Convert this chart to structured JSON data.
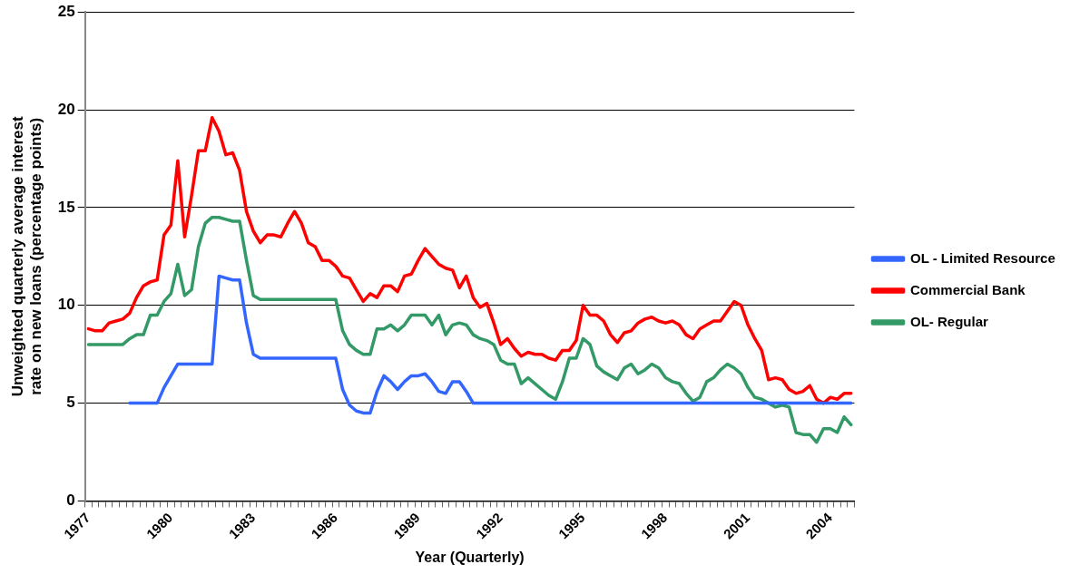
{
  "chart_data": {
    "type": "line",
    "xlabel": "Year (Quarterly)",
    "ylabel": "Unweighted quarterly average interest rate on new loans (percentage points)",
    "categories": [
      "1977",
      null,
      null,
      null,
      null,
      null,
      null,
      null,
      null,
      null,
      null,
      null,
      "1980",
      null,
      null,
      null,
      null,
      null,
      null,
      null,
      null,
      null,
      null,
      null,
      "1983",
      null,
      null,
      null,
      null,
      null,
      null,
      null,
      null,
      null,
      null,
      null,
      "1986",
      null,
      null,
      null,
      null,
      null,
      null,
      null,
      null,
      null,
      null,
      null,
      "1989",
      null,
      null,
      null,
      null,
      null,
      null,
      null,
      null,
      null,
      null,
      null,
      "1992",
      null,
      null,
      null,
      null,
      null,
      null,
      null,
      null,
      null,
      null,
      null,
      "1995",
      null,
      null,
      null,
      null,
      null,
      null,
      null,
      null,
      null,
      null,
      null,
      "1998",
      null,
      null,
      null,
      null,
      null,
      null,
      null,
      null,
      null,
      null,
      null,
      "2001",
      null,
      null,
      null,
      null,
      null,
      null,
      null,
      null,
      null,
      null,
      null,
      "2004",
      null,
      null,
      null
    ],
    "series": [
      {
        "name": "OL - Limited Resource",
        "color": "#3366ff",
        "values": [
          null,
          null,
          null,
          null,
          null,
          null,
          5.0,
          5.0,
          5.0,
          5.0,
          5.0,
          5.8,
          6.4,
          7.0,
          7.0,
          7.0,
          7.0,
          7.0,
          7.0,
          11.5,
          11.4,
          11.3,
          11.3,
          9.1,
          7.5,
          7.3,
          7.3,
          7.3,
          7.3,
          7.3,
          7.3,
          7.3,
          7.3,
          7.3,
          7.3,
          7.3,
          7.3,
          5.7,
          4.9,
          4.6,
          4.5,
          4.5,
          5.6,
          6.4,
          6.1,
          5.7,
          6.1,
          6.4,
          6.4,
          6.5,
          6.1,
          5.6,
          5.5,
          6.1,
          6.1,
          5.6,
          5.0,
          5.0,
          5.0,
          5.0,
          5.0,
          5.0,
          5.0,
          5.0,
          5.0,
          5.0,
          5.0,
          5.0,
          5.0,
          5.0,
          5.0,
          5.0,
          5.0,
          5.0,
          5.0,
          5.0,
          5.0,
          5.0,
          5.0,
          5.0,
          5.0,
          5.0,
          5.0,
          5.0,
          5.0,
          5.0,
          5.0,
          5.0,
          5.0,
          5.0,
          5.0,
          5.0,
          5.0,
          5.0,
          5.0,
          5.0,
          5.0,
          5.0,
          5.0,
          5.0,
          5.0,
          5.0,
          5.0,
          5.0,
          5.0,
          5.0,
          5.0,
          5.0,
          5.0,
          5.0,
          5.0,
          5.0
        ]
      },
      {
        "name": "Commercial Bank",
        "color": "#ff0000",
        "values": [
          8.8,
          8.7,
          8.7,
          9.1,
          9.2,
          9.3,
          9.6,
          10.4,
          11.0,
          11.2,
          11.3,
          13.6,
          14.1,
          17.4,
          13.5,
          15.6,
          17.9,
          17.9,
          19.6,
          18.9,
          17.7,
          17.8,
          16.9,
          14.8,
          13.8,
          13.2,
          13.6,
          13.6,
          13.5,
          14.2,
          14.8,
          14.2,
          13.2,
          13.0,
          12.3,
          12.3,
          12.0,
          11.5,
          11.4,
          10.8,
          10.2,
          10.6,
          10.4,
          11.0,
          11.0,
          10.7,
          11.5,
          11.6,
          12.3,
          12.9,
          12.5,
          12.1,
          11.9,
          11.8,
          10.9,
          11.5,
          10.4,
          9.9,
          10.1,
          9.1,
          8.0,
          8.3,
          7.8,
          7.4,
          7.6,
          7.5,
          7.5,
          7.3,
          7.2,
          7.7,
          7.7,
          8.2,
          10.0,
          9.5,
          9.5,
          9.2,
          8.5,
          8.1,
          8.6,
          8.7,
          9.1,
          9.3,
          9.4,
          9.2,
          9.1,
          9.2,
          9.0,
          8.5,
          8.3,
          8.8,
          9.0,
          9.2,
          9.2,
          9.7,
          10.2,
          10.0,
          9.0,
          8.3,
          7.7,
          6.2,
          6.3,
          6.2,
          5.7,
          5.5,
          5.6,
          5.9,
          5.2,
          5.0,
          5.3,
          5.2,
          5.5,
          5.5
        ]
      },
      {
        "name": "OL- Regular",
        "color": "#339966",
        "values": [
          8.0,
          8.0,
          8.0,
          8.0,
          8.0,
          8.0,
          8.3,
          8.5,
          8.5,
          9.5,
          9.5,
          10.2,
          10.6,
          12.1,
          10.5,
          10.8,
          13.0,
          14.2,
          14.5,
          14.5,
          14.4,
          14.3,
          14.3,
          12.3,
          10.5,
          10.3,
          10.3,
          10.3,
          10.3,
          10.3,
          10.3,
          10.3,
          10.3,
          10.3,
          10.3,
          10.3,
          10.3,
          8.7,
          8.0,
          7.7,
          7.5,
          7.5,
          8.8,
          8.8,
          9.0,
          8.7,
          9.0,
          9.5,
          9.5,
          9.5,
          9.0,
          9.5,
          8.5,
          9.0,
          9.1,
          9.0,
          8.5,
          8.3,
          8.2,
          8.0,
          7.2,
          7.0,
          7.0,
          6.0,
          6.3,
          6.0,
          5.7,
          5.4,
          5.2,
          6.1,
          7.3,
          7.3,
          8.3,
          8.0,
          6.9,
          6.6,
          6.4,
          6.2,
          6.8,
          7.0,
          6.5,
          6.7,
          7.0,
          6.8,
          6.3,
          6.1,
          6.0,
          5.5,
          5.1,
          5.3,
          6.1,
          6.3,
          6.7,
          7.0,
          6.8,
          6.5,
          5.8,
          5.3,
          5.2,
          5.0,
          4.8,
          4.9,
          4.8,
          3.5,
          3.4,
          3.4,
          3.0,
          3.7,
          3.7,
          3.5,
          4.3,
          3.9
        ]
      }
    ],
    "ylim": [
      0,
      25
    ],
    "yticks": [
      0,
      5,
      10,
      15,
      20,
      25
    ],
    "grid": "y",
    "legend": "right",
    "marker": "none",
    "line_style": "solid"
  }
}
